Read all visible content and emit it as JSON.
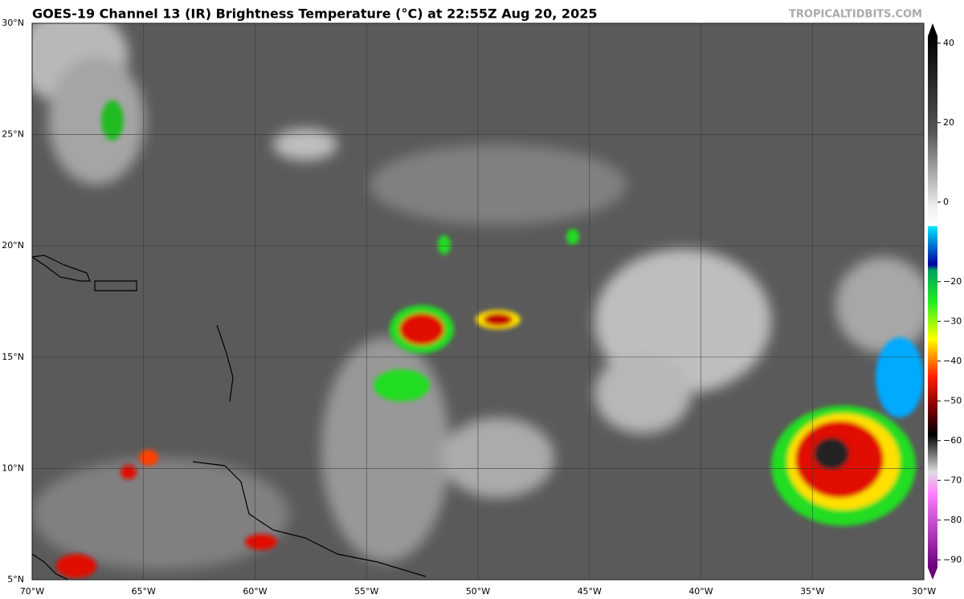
{
  "header": {
    "title": "GOES-19 Channel 13 (IR) Brightness Temperature (°C) at 22:55Z Aug 20, 2025",
    "credit": "TROPICALTIDBITS.COM"
  },
  "map": {
    "lon_range": [
      -70,
      -30
    ],
    "lat_range": [
      5,
      30
    ],
    "lon_ticks": [
      {
        "value": -70,
        "label": "70°W"
      },
      {
        "value": -65,
        "label": "65°W"
      },
      {
        "value": -60,
        "label": "60°W"
      },
      {
        "value": -55,
        "label": "55°W"
      },
      {
        "value": -50,
        "label": "50°W"
      },
      {
        "value": -45,
        "label": "45°W"
      },
      {
        "value": -40,
        "label": "40°W"
      },
      {
        "value": -35,
        "label": "35°W"
      },
      {
        "value": -30,
        "label": "30°W"
      }
    ],
    "lat_ticks": [
      {
        "value": 5,
        "label": "5°N"
      },
      {
        "value": 10,
        "label": "10°N"
      },
      {
        "value": 15,
        "label": "15°N"
      },
      {
        "value": 20,
        "label": "20°N"
      },
      {
        "value": 25,
        "label": "25°N"
      },
      {
        "value": 30,
        "label": "30°N"
      }
    ]
  },
  "colorbar": {
    "range": [
      -95,
      45
    ],
    "ticks": [
      40,
      20,
      0,
      {
        "value": -20,
        "label": "−20"
      },
      {
        "value": -30,
        "label": "−30"
      },
      {
        "value": -40,
        "label": "−40"
      },
      {
        "value": -50,
        "label": "−50"
      },
      {
        "value": -60,
        "label": "−60"
      },
      {
        "value": -70,
        "label": "−70"
      },
      {
        "value": -80,
        "label": "−80"
      },
      {
        "value": -90,
        "label": "−90"
      }
    ]
  }
}
